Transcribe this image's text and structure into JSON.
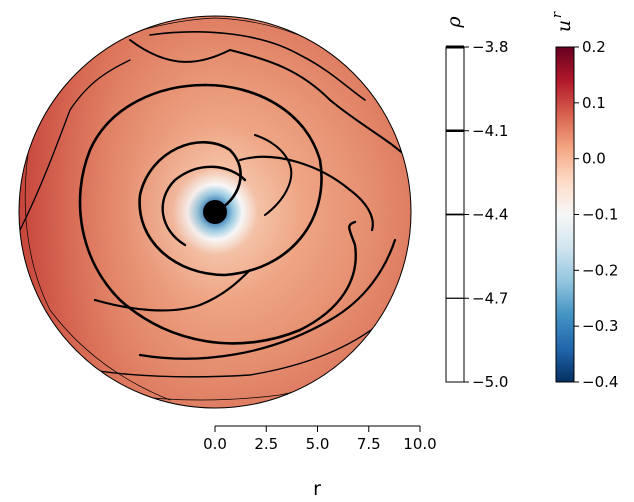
{
  "chart_data": [
    {
      "type": "polar-heatmap",
      "field": "u^r",
      "contour_field": "ρ",
      "xlabel": "r",
      "x_ticks": [
        "0.0",
        "2.5",
        "5.0",
        "7.5",
        "10.0"
      ],
      "xlim": [
        0,
        10
      ]
    },
    {
      "type": "colorbar",
      "title": "ρ",
      "ticks": [
        "−3.8",
        "−4.1",
        "−4.4",
        "−4.7",
        "−5.0"
      ],
      "tick_values": [
        -3.8,
        -4.1,
        -4.4,
        -4.7,
        -5.0
      ],
      "range": [
        -5.0,
        -3.8
      ],
      "line_widths": [
        0.6,
        1.2,
        1.8,
        2.4,
        3.0
      ]
    },
    {
      "type": "colorbar",
      "title": "u",
      "title_superscript": "r",
      "ticks": [
        "0.2",
        "0.1",
        "0.0",
        "−0.1",
        "−0.2",
        "−0.3",
        "−0.4"
      ],
      "tick_values": [
        0.2,
        0.1,
        0.0,
        -0.1,
        -0.2,
        -0.3,
        -0.4
      ],
      "range": [
        -0.4,
        0.2
      ],
      "colormap": [
        "#053061",
        "#2166ac",
        "#4393c3",
        "#92c5de",
        "#d1e5f0",
        "#f7f7f7",
        "#fddbc7",
        "#f4a582",
        "#d6604d",
        "#b2182b",
        "#67001f"
      ]
    }
  ]
}
